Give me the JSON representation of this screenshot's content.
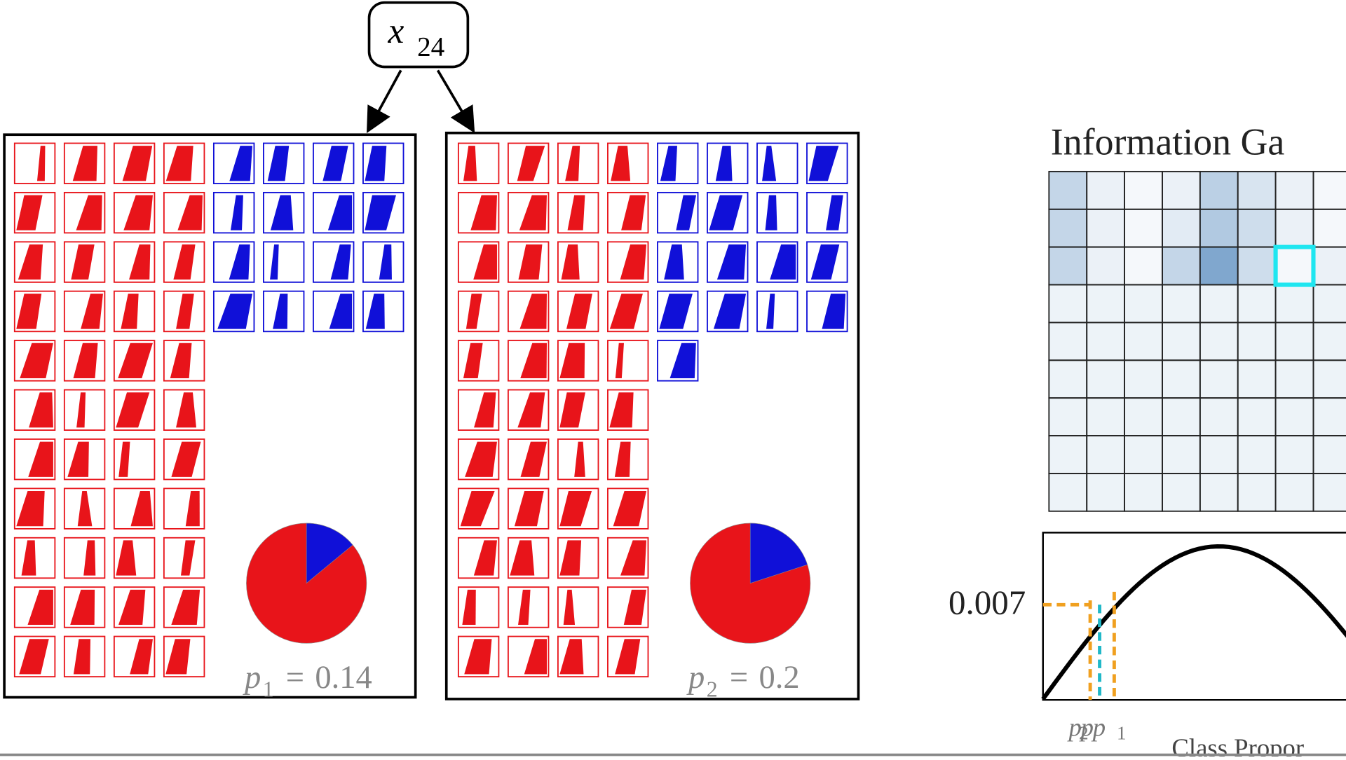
{
  "node": {
    "label": "x",
    "subscript": "24"
  },
  "splits": [
    {
      "label": "p",
      "subscript": "1",
      "equals": "=",
      "value": 0.14
    },
    {
      "label": "p",
      "subscript": "2",
      "equals": "=",
      "value": 0.2
    }
  ],
  "info_gain": {
    "title": "Information Ga",
    "y_label": "0.007",
    "x_label": "Class Propor",
    "x_markers": [
      {
        "label": "p",
        "subscript": "2"
      },
      {
        "label": "p"
      },
      {
        "label": "p",
        "subscript": "1"
      }
    ]
  }
}
